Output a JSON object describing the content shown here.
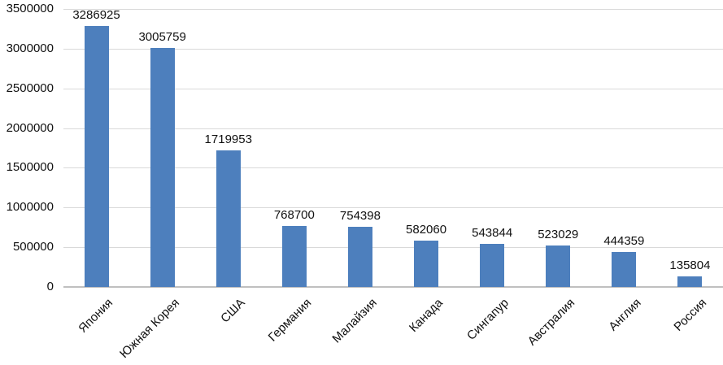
{
  "chart_data": {
    "type": "bar",
    "title": "",
    "xlabel": "",
    "ylabel": "",
    "categories": [
      "Япония",
      "Южная Корея",
      "США",
      "Германия",
      "Малайзия",
      "Канада",
      "Сингапур",
      "Австралия",
      "Англия",
      "Россия"
    ],
    "values": [
      3286925,
      3005759,
      1719953,
      768700,
      754398,
      582060,
      543844,
      523029,
      444359,
      135804
    ],
    "value_labels": [
      "3286925",
      "3005759",
      "1719953",
      "768700",
      "754398",
      "582060",
      "543844",
      "523029",
      "444359",
      "135804"
    ],
    "ylim": [
      0,
      3500000
    ],
    "ytick_step": 500000,
    "yticks": [
      0,
      500000,
      1000000,
      1500000,
      2000000,
      2500000,
      3000000,
      3500000
    ],
    "ytick_labels": [
      "0",
      "500000",
      "1000000",
      "1500000",
      "2000000",
      "2500000",
      "3000000",
      "3500000"
    ],
    "grid": true,
    "legend_position": "none",
    "colors": {
      "bar": "#4d7fbd",
      "gridline": "#d9d9d9",
      "axis_line": "#bfbfbf",
      "text": "#111111",
      "background": "#ffffff"
    }
  }
}
